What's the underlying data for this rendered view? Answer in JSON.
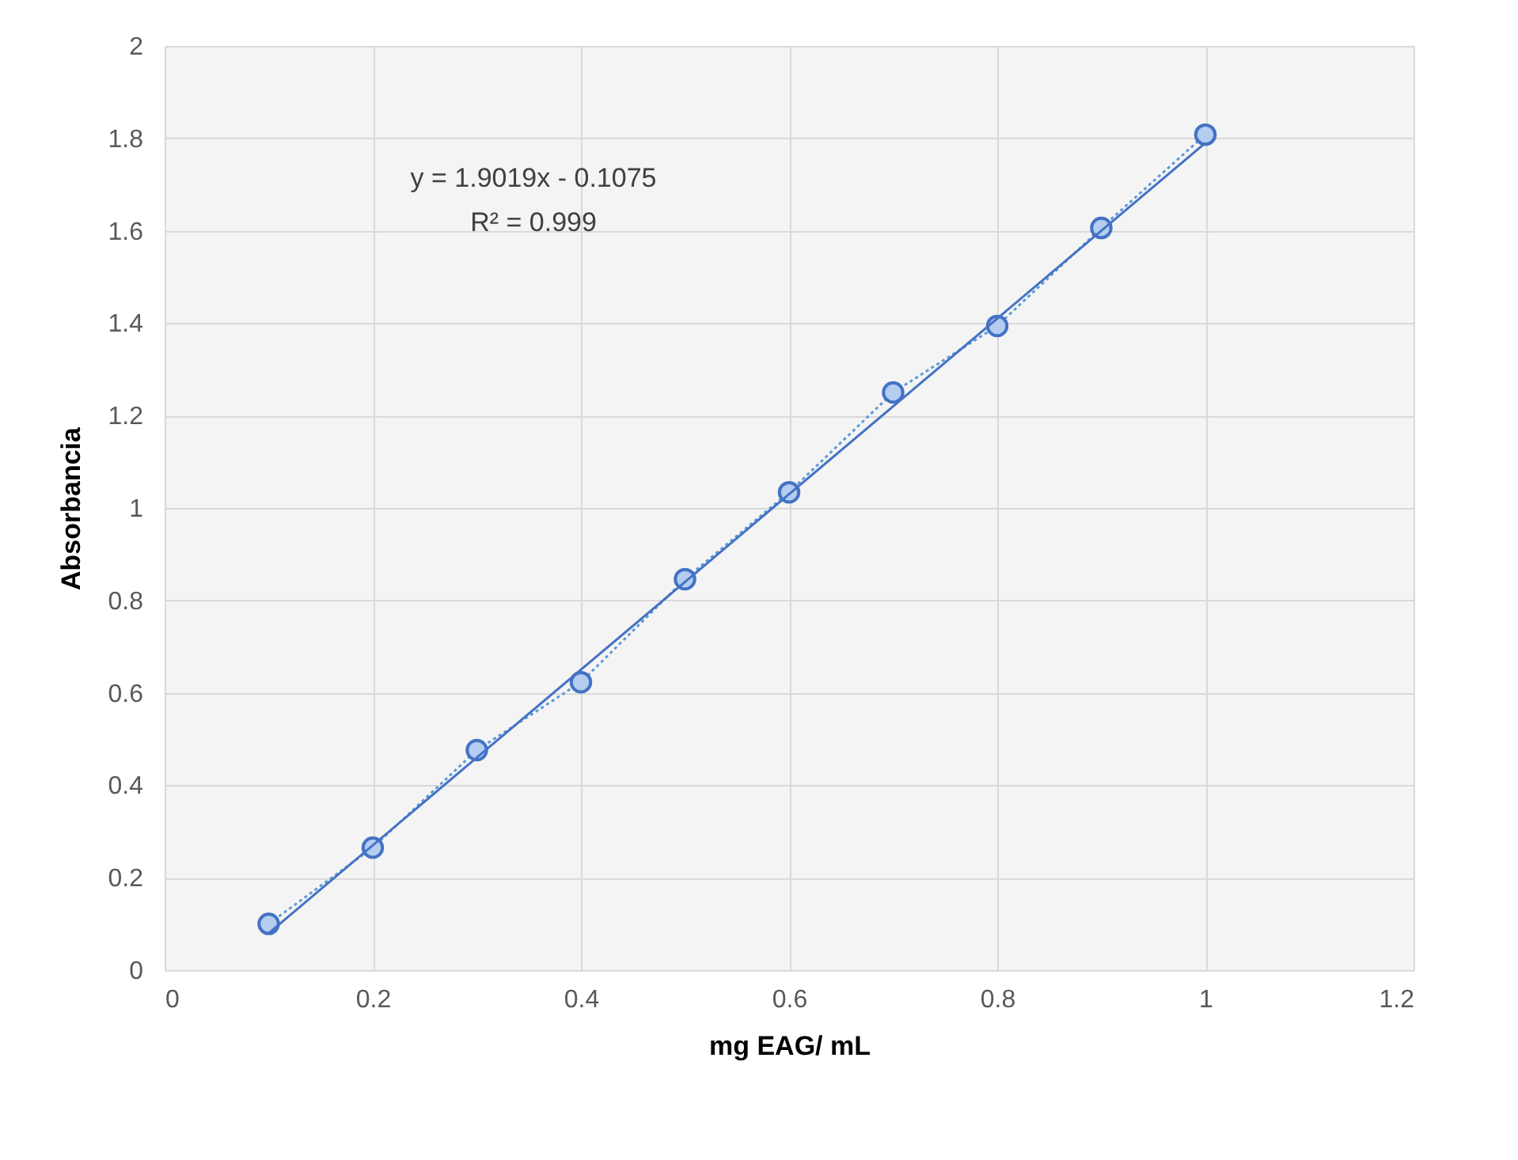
{
  "chart_data": {
    "type": "line",
    "xlabel": "mg EAG/ mL",
    "ylabel": "Absorbancia",
    "xlim": [
      0,
      1.2
    ],
    "xticks": [
      0,
      0.2,
      0.4,
      0.6,
      0.8,
      1,
      1.2
    ],
    "ylim": [
      0,
      2
    ],
    "yticks": [
      0,
      0.2,
      0.4,
      0.6,
      0.8,
      1,
      1.2,
      1.4,
      1.6,
      1.8,
      2
    ],
    "grid": true,
    "annotations": [
      "y = 1.9019x - 0.1075",
      "R² = 0.999"
    ],
    "series": [
      {
        "color": "#5b9bd5",
        "marker": "circle",
        "line_style": "dotted",
        "x": [
          0.1,
          0.2,
          0.3,
          0.4,
          0.5,
          0.6,
          0.7,
          0.8,
          0.9,
          1
        ],
        "values": [
          0.1,
          0.265,
          0.476,
          0.623,
          0.846,
          1.034,
          1.25,
          1.394,
          1.606,
          1.808
        ]
      },
      {
        "color": "#4472c4",
        "marker": "none",
        "line_style": "solid",
        "x": [
          0.1,
          1
        ],
        "values": [
          0.08,
          1.79
        ]
      }
    ]
  }
}
